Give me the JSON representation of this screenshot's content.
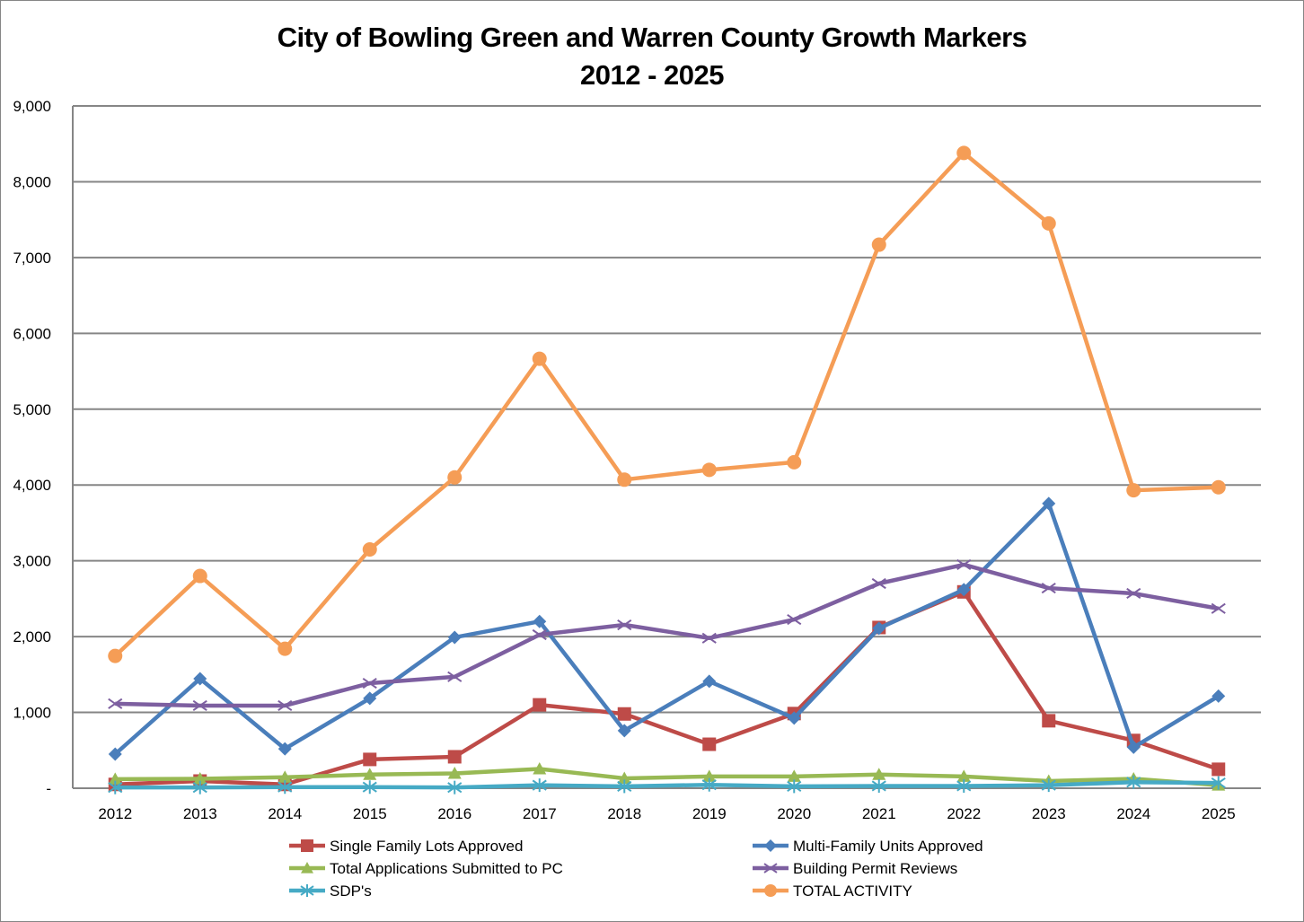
{
  "chart_data": {
    "type": "line",
    "title": "City of Bowling Green and Warren County Growth Markers",
    "subtitle": "2012 - 2025",
    "xlabel": "",
    "ylabel": "",
    "ylim": [
      0,
      9000
    ],
    "yticks": [
      0,
      1000,
      2000,
      3000,
      4000,
      5000,
      6000,
      7000,
      8000,
      9000
    ],
    "ytick_labels": [
      "-",
      "1,000",
      "2,000",
      "3,000",
      "4,000",
      "5,000",
      "6,000",
      "7,000",
      "8,000",
      "9,000"
    ],
    "grid": true,
    "legend_position": "bottom",
    "categories": [
      "2012",
      "2013",
      "2014",
      "2015",
      "2016",
      "2017",
      "2018",
      "2019",
      "2020",
      "2021",
      "2022",
      "2023",
      "2024",
      "2025"
    ],
    "series": [
      {
        "name": "Single Family Lots Approved",
        "color": "#BE4B48",
        "marker": "square",
        "values": [
          50,
          95,
          50,
          380,
          415,
          1100,
          980,
          580,
          985,
          2120,
          2590,
          890,
          630,
          250
        ]
      },
      {
        "name": "Multi-Family Units Approved",
        "color": "#4A7EBB",
        "marker": "diamond",
        "values": [
          450,
          1445,
          520,
          1185,
          1990,
          2200,
          760,
          1410,
          925,
          2110,
          2620,
          3755,
          540,
          1215
        ]
      },
      {
        "name": "Total Applications Submitted to PC",
        "color": "#98B954",
        "marker": "triangle",
        "values": [
          120,
          125,
          145,
          180,
          195,
          255,
          130,
          155,
          155,
          180,
          155,
          95,
          125,
          40
        ]
      },
      {
        "name": "Building Permit Reviews",
        "color": "#7D5FA0",
        "marker": "x",
        "values": [
          1115,
          1090,
          1090,
          1385,
          1470,
          2025,
          2155,
          1980,
          2225,
          2700,
          2950,
          2640,
          2570,
          2370
        ]
      },
      {
        "name": "SDP's",
        "color": "#46AAC5",
        "marker": "star",
        "values": [
          10,
          10,
          15,
          15,
          10,
          40,
          25,
          45,
          25,
          30,
          30,
          40,
          80,
          70
        ]
      },
      {
        "name": "TOTAL ACTIVITY",
        "color": "#F59D56",
        "marker": "circle",
        "values": [
          1745,
          2800,
          1840,
          3150,
          4100,
          5665,
          4070,
          4200,
          4300,
          7170,
          8380,
          7450,
          3930,
          3970
        ]
      }
    ]
  }
}
